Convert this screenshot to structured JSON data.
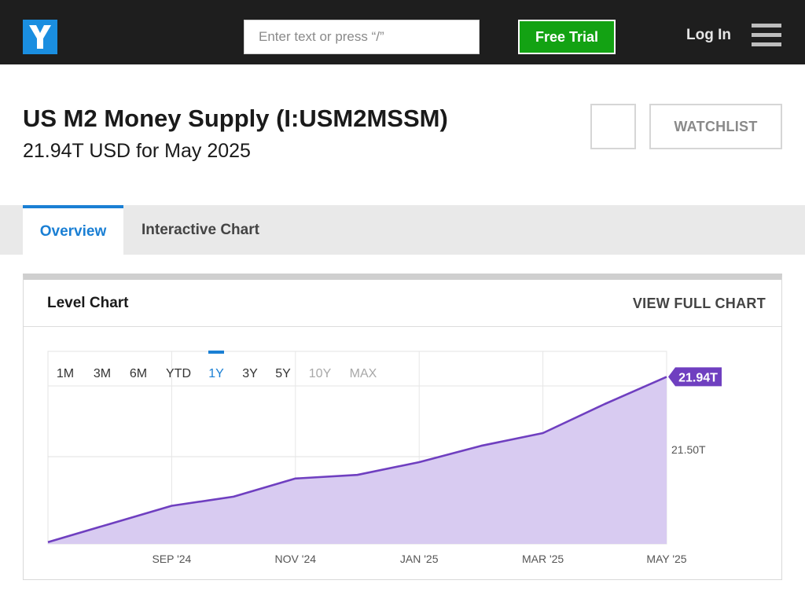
{
  "header": {
    "logo_letter": "Y",
    "search_placeholder": "Enter text or press “/”",
    "trial_label": "Free Trial",
    "login_label": "Log In",
    "menu_icon": "hamburger-menu-icon"
  },
  "page": {
    "title": "US M2 Money Supply (I:USM2MSSM)",
    "subtitle": "21.94T USD for May 2025",
    "watchlist_label": "WATCHLIST"
  },
  "tabs": [
    {
      "label": "Overview",
      "active": true
    },
    {
      "label": "Interactive Chart",
      "active": false
    }
  ],
  "card": {
    "title": "Level Chart",
    "view_full_label": "VIEW FULL CHART"
  },
  "ranges": [
    {
      "label": "1M",
      "state": "normal"
    },
    {
      "label": "3M",
      "state": "normal"
    },
    {
      "label": "6M",
      "state": "normal"
    },
    {
      "label": "YTD",
      "state": "normal"
    },
    {
      "label": "1Y",
      "state": "active"
    },
    {
      "label": "3Y",
      "state": "normal"
    },
    {
      "label": "5Y",
      "state": "normal"
    },
    {
      "label": "10Y",
      "state": "disabled"
    },
    {
      "label": "MAX",
      "state": "disabled"
    }
  ],
  "colors": {
    "accent_blue": "#1a7fd4",
    "line_purple": "#6f3fc0",
    "area_purple": "#d8cbf1",
    "badge_purple": "#6f3fc0",
    "trial_green": "#13a213"
  },
  "chart_data": {
    "type": "area",
    "x": [
      "2024-07",
      "2024-08",
      "2024-09",
      "2024-10",
      "2024-11",
      "2024-12",
      "2025-01",
      "2025-02",
      "2025-03",
      "2025-04",
      "2025-05"
    ],
    "values": [
      21.03,
      21.13,
      21.23,
      21.28,
      21.38,
      21.4,
      21.47,
      21.56,
      21.63,
      21.79,
      21.94
    ],
    "x_tick_labels": [
      {
        "x": "2024-09",
        "label": "SEP '24"
      },
      {
        "x": "2024-11",
        "label": "NOV '24"
      },
      {
        "x": "2025-01",
        "label": "JAN '25"
      },
      {
        "x": "2025-03",
        "label": "MAR '25"
      },
      {
        "x": "2025-05",
        "label": "MAY '25"
      }
    ],
    "y_tick_labels": [
      {
        "y": 21.5,
        "label": "21.50T"
      }
    ],
    "ylim": [
      21.02,
      22.08
    ],
    "last_value_label": "21.94T",
    "grid": true
  }
}
